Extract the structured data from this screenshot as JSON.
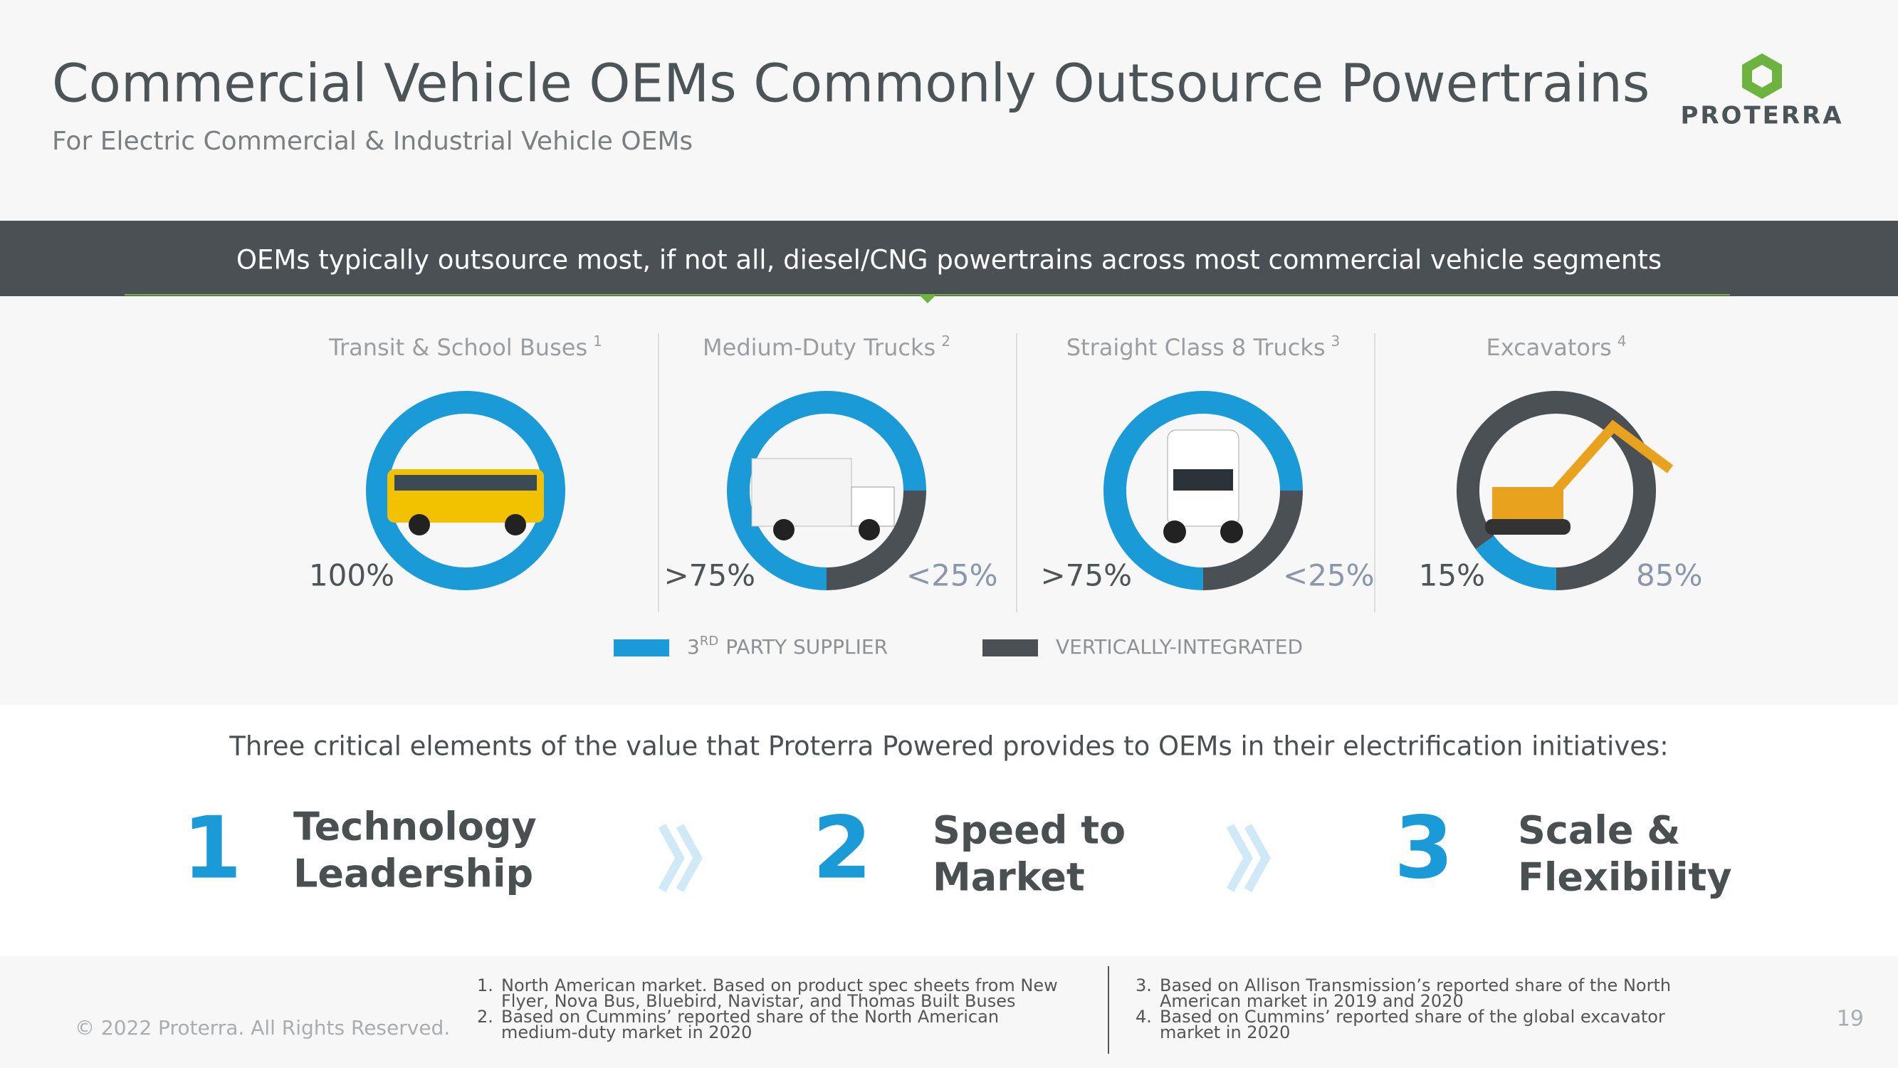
{
  "header": {
    "title": "Commercial Vehicle OEMs Commonly Outsource Powertrains",
    "subtitle": "For Electric Commercial & Industrial Vehicle OEMs",
    "logo": "PROTERRA"
  },
  "banner": "OEMs typically outsource most, if not all, diesel/CNG powertrains across most commercial vehicle segments",
  "charts": [
    {
      "type": "donut",
      "title": "Transit & School Buses",
      "note": "1",
      "values": [
        100
      ],
      "value_labels": [
        "100%"
      ]
    },
    {
      "type": "donut",
      "title": "Medium-Duty Trucks",
      "note": "2",
      "values": [
        75,
        25
      ],
      "value_labels": [
        ">75%",
        "<25%"
      ]
    },
    {
      "type": "donut",
      "title": "Straight Class 8 Trucks",
      "note": "3",
      "values": [
        75,
        25
      ],
      "value_labels": [
        ">75%",
        "<25%"
      ]
    },
    {
      "type": "donut",
      "title": "Excavators",
      "note": "4",
      "values": [
        15,
        85
      ],
      "value_labels": [
        "15%",
        "85%"
      ]
    }
  ],
  "legend": [
    {
      "number": "3",
      "sup": "RD",
      "text": "PARTY SUPPLIER",
      "color": "#1a9ad6"
    },
    {
      "text": "VERTICALLY-INTEGRATED",
      "color": "#4a5054"
    }
  ],
  "value_intro": "Three critical elements of the value that Proterra Powered provides to OEMs in their electrification initiatives:",
  "elements": [
    {
      "number": "1",
      "lines": [
        "Technology",
        "Leadership"
      ]
    },
    {
      "number": "2",
      "lines": [
        "Speed to",
        "Market"
      ]
    },
    {
      "number": "3",
      "lines": [
        "Scale &",
        "Flexibility"
      ]
    }
  ],
  "footer": {
    "copyright": "© 2022 Proterra. All Rights Reserved.",
    "notes_left": [
      {
        "marker": "1.",
        "lines": [
          "North American market. Based on product spec sheets from New",
          "Flyer, Nova Bus, Bluebird, Navistar, and Thomas Built Buses"
        ]
      },
      {
        "marker": "2.",
        "lines": [
          "Based on Cummins’ reported share of the North American",
          "medium-duty market in 2020"
        ]
      }
    ],
    "notes_right": [
      {
        "marker": "3.",
        "lines": [
          "Based on Allison Transmission’s reported share of the North",
          "American market in 2019 and 2020"
        ]
      },
      {
        "marker": "4.",
        "lines": [
          "Based on Cummins’ reported share of the global excavator",
          "market in 2020"
        ]
      }
    ],
    "page": "19"
  }
}
